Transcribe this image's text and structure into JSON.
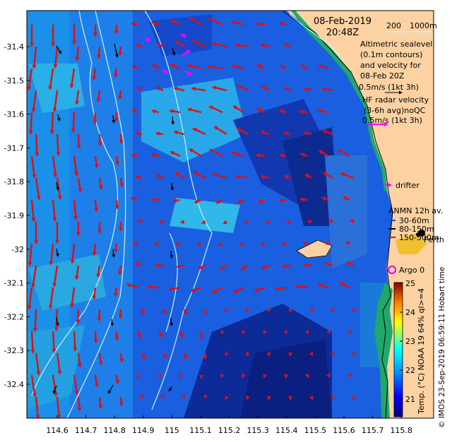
{
  "map": {
    "date": "08-Feb-2019",
    "time": "20:48Z",
    "isobath_legend": {
      "label_200": "200",
      "label_1000": "1000m"
    },
    "altimetry_text": [
      "Altimetric sealevel",
      "(0.1m contours)",
      "and velocity for",
      "08-Feb 20Z",
      "0.5m/s (1kt 3h)"
    ],
    "hf_radar_text": [
      "HF radar velocity",
      "(3-6h avg)noQC",
      "0.5m/s (1kt 3h)"
    ],
    "drifter_label": "drifter",
    "anmn_title": "ANMN 12h av.",
    "anmn_items": [
      {
        "label": "30-60m",
        "color": "#1f3fd0"
      },
      {
        "label": "80-150m",
        "color": "#000000"
      },
      {
        "label": "150-500m",
        "color": "#e01010"
      }
    ],
    "city_label": "Perth",
    "argo_label": "Argo 0",
    "colorbar_title": "Temp. (°C) NOAA 19 64% ql>=4",
    "credit": "© IMOS 23-Sep-2019 06:59:11 Hobart time",
    "colorbar_ticks": [
      "21",
      "22",
      "23",
      "24",
      "25"
    ],
    "y_ticks": [
      "-31.4",
      "-31.5",
      "-31.6",
      "-31.7",
      "-31.8",
      "-31.9",
      "-32",
      "-32.1",
      "-32.2",
      "-32.3",
      "-32.4"
    ],
    "x_ticks": [
      "114.6",
      "114.7",
      "114.8",
      "114.9",
      "115",
      "115.1",
      "115.2",
      "115.3",
      "115.4",
      "115.5",
      "115.6",
      "115.7",
      "115.8"
    ],
    "colors": {
      "land": "#fcd2a2",
      "altimetry_arrow": "#e01010",
      "hf_arrow": "#ff00ff",
      "argo": "#e000e0",
      "isobath": "#c8f4f4"
    }
  }
}
